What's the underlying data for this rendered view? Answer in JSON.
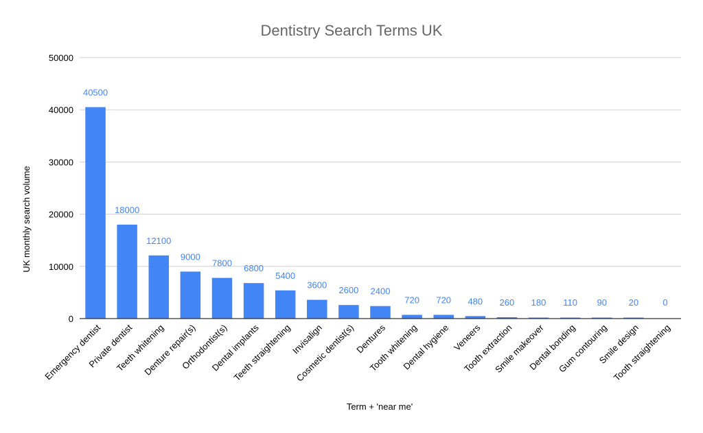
{
  "chart_data": {
    "type": "bar",
    "title": "Dentistry Search Terms UK",
    "xlabel": "Term + 'near me'",
    "ylabel": "UK monthly search volume",
    "ylim": [
      0,
      50000
    ],
    "yticks": [
      "0",
      "10000",
      "20000",
      "30000",
      "40000",
      "50000"
    ],
    "grid": true,
    "bar_color": "#4285f4",
    "label_color": "#4285f4",
    "categories": [
      "Emergency dentist",
      "Private dentist",
      "Teeth whitening",
      "Denture repair(s)",
      "Orthodontist(s)",
      "Dental implants",
      "Teeth straightening",
      "Invisalign",
      "Cosmetic dentist(s)",
      "Dentures",
      "Tooth whitening",
      "Dental hygiene",
      "Veneers",
      "Tooth extraction",
      "Smile makeover",
      "Dental bonding",
      "Gum contouring",
      "Smile design",
      "Tooth straightening"
    ],
    "values": [
      40500,
      18000,
      12100,
      9000,
      7800,
      6800,
      5400,
      3600,
      2600,
      2400,
      720,
      720,
      480,
      260,
      180,
      110,
      90,
      20,
      0
    ],
    "data_labels": [
      "40500",
      "18000",
      "12100",
      "9000",
      "7800",
      "6800",
      "5400",
      "3600",
      "2600",
      "2400",
      "720",
      "720",
      "480",
      "260",
      "180",
      "110",
      "90",
      "20",
      "0"
    ]
  }
}
